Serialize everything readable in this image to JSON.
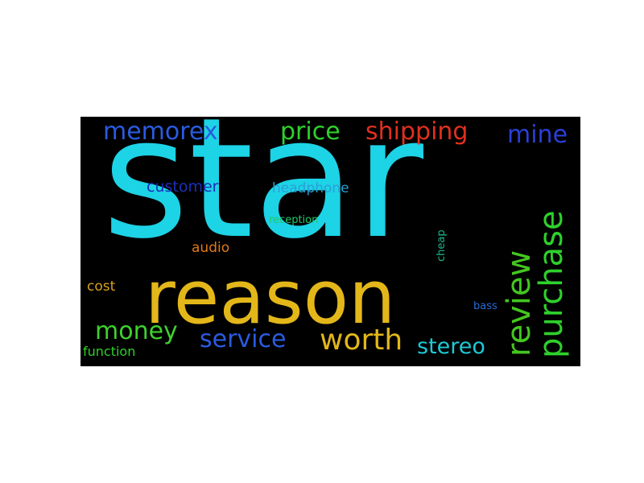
{
  "word_cloud": {
    "background": "#000000",
    "words": [
      {
        "text": "star",
        "color": "#1dd3e6"
      },
      {
        "text": "reason",
        "color": "#e3b719"
      },
      {
        "text": "memorex",
        "color": "#2a5be0"
      },
      {
        "text": "price",
        "color": "#2ed12b"
      },
      {
        "text": "shipping",
        "color": "#e0301e"
      },
      {
        "text": "mine",
        "color": "#2a3fd6"
      },
      {
        "text": "customer",
        "color": "#1c2fb8"
      },
      {
        "text": "headphone",
        "color": "#2a9fd6"
      },
      {
        "text": "purchase",
        "color": "#2ed12b"
      },
      {
        "text": "review",
        "color": "#44c61f"
      },
      {
        "text": "reception",
        "color": "#1fc96a"
      },
      {
        "text": "audio",
        "color": "#e07a1a"
      },
      {
        "text": "cheap",
        "color": "#1fb88a"
      },
      {
        "text": "cost",
        "color": "#d8a020"
      },
      {
        "text": "bass",
        "color": "#2a6bd6"
      },
      {
        "text": "money",
        "color": "#3fd12e"
      },
      {
        "text": "service",
        "color": "#2a5be0"
      },
      {
        "text": "worth",
        "color": "#e3b719"
      },
      {
        "text": "stereo",
        "color": "#1dc9d6"
      },
      {
        "text": "function",
        "color": "#2ed12b"
      }
    ]
  }
}
